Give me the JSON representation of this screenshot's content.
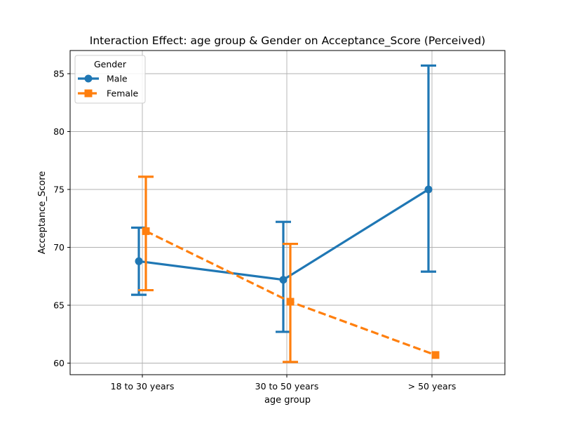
{
  "chart_data": {
    "type": "line",
    "title": "Interaction Effect: age group & Gender on Acceptance_Score (Perceived)",
    "xlabel": "age group",
    "ylabel": "Acceptance_Score",
    "categories": [
      "18 to 30 years",
      "30 to 50 years",
      "> 50 years"
    ],
    "ylim": [
      59,
      87
    ],
    "yticks": [
      60,
      65,
      70,
      75,
      80,
      85
    ],
    "grid": true,
    "legend": {
      "title": "Gender",
      "placement": "top-left"
    },
    "series": [
      {
        "name": "Male",
        "color": "#1f77b4",
        "marker": "circle",
        "linestyle": "solid",
        "values": [
          68.8,
          67.2,
          75.0
        ],
        "err_low": [
          65.9,
          62.7,
          67.9
        ],
        "err_high": [
          71.7,
          72.2,
          85.7
        ]
      },
      {
        "name": "Female",
        "color": "#ff7f0e",
        "marker": "square",
        "linestyle": "dashed",
        "values": [
          71.4,
          65.3,
          60.7
        ],
        "err_low": [
          66.3,
          60.1,
          null
        ],
        "err_high": [
          76.1,
          70.3,
          null
        ]
      }
    ]
  }
}
